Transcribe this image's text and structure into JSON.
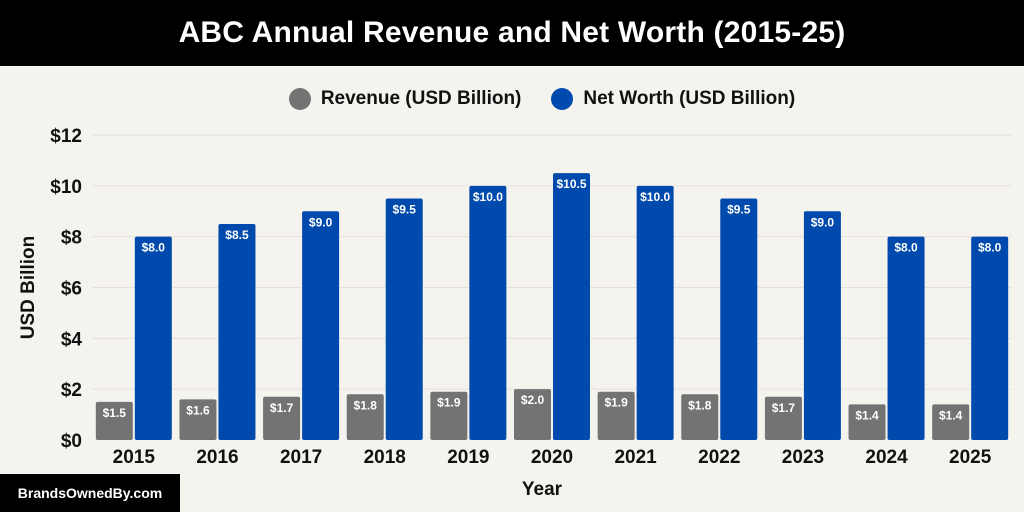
{
  "chart_data": {
    "type": "bar",
    "title": "ABC Annual Revenue and Net Worth (2015-25)",
    "xlabel": "Year",
    "ylabel": "USD Billion",
    "ylim": [
      0,
      12
    ],
    "yticks": [
      0,
      2,
      4,
      6,
      8,
      10,
      12
    ],
    "ytick_labels": [
      "$0",
      "$2",
      "$4",
      "$6",
      "$8",
      "$10",
      "$12"
    ],
    "categories": [
      "2015",
      "2016",
      "2017",
      "2018",
      "2019",
      "2020",
      "2021",
      "2022",
      "2023",
      "2024",
      "2025"
    ],
    "series": [
      {
        "name": "Revenue (USD Billion)",
        "color": "#737373",
        "values": [
          1.5,
          1.6,
          1.7,
          1.8,
          1.9,
          2.0,
          1.9,
          1.8,
          1.7,
          1.4,
          1.4
        ],
        "labels": [
          "$1.5",
          "$1.6",
          "$1.7",
          "$1.8",
          "$1.9",
          "$2.0",
          "$1.9",
          "$1.8",
          "$1.7",
          "$1.4",
          "$1.4"
        ]
      },
      {
        "name": "Net Worth (USD Billion)",
        "color": "#004aad",
        "values": [
          8.0,
          8.5,
          9.0,
          9.5,
          10.0,
          10.5,
          10.0,
          9.5,
          9.0,
          8.0,
          8.0
        ],
        "labels": [
          "$8.0",
          "$8.5",
          "$9.0",
          "$9.5",
          "$10.0",
          "$10.5",
          "$10.0",
          "$9.5",
          "$9.0",
          "$8.0",
          "$8.0"
        ]
      }
    ],
    "legend": "top-center",
    "grid": true
  },
  "watermark": "BrandsOwnedBy.com"
}
